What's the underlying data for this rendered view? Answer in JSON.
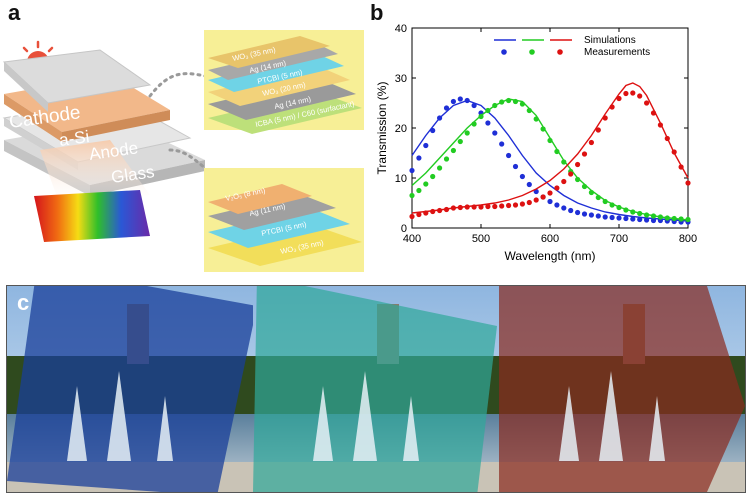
{
  "panels": {
    "a": "a",
    "b": "b",
    "c": "c"
  },
  "panel_a": {
    "main_stack": {
      "cathode": "Cathode",
      "absorber": "a-Si",
      "anode": "Anode",
      "substrate": "Glass"
    },
    "top_layers": [
      "WO₃ (35 nm)",
      "Ag (14 nm)",
      "PTCBI (5 nm)",
      "WO₃ (20 nm)",
      "Ag (14 nm)",
      "ICBA (5 nm) / C60 (surfactant)"
    ],
    "bottom_layers": [
      "V₂O₅ (8 nm)",
      "Ag (11 nm)",
      "PTCBI (5 nm)",
      "WO₃ (35 nm)"
    ]
  },
  "panel_c": {
    "filters": [
      "blue",
      "cyan",
      "red"
    ]
  },
  "chart_data": {
    "type": "line",
    "xlabel": "Wavelength (nm)",
    "ylabel": "Transmission (%)",
    "xlim": [
      400,
      800
    ],
    "ylim": [
      0,
      40
    ],
    "xticks": [
      400,
      500,
      600,
      700,
      800
    ],
    "yticks": [
      0,
      10,
      20,
      30,
      40
    ],
    "legend": {
      "position": "top-right",
      "entries": [
        "Simulations",
        "Measurements"
      ]
    },
    "series": [
      {
        "name": "Blue simulation",
        "kind": "line",
        "color": "#1f2fd6",
        "x": [
          400,
          420,
          440,
          460,
          480,
          500,
          520,
          540,
          560,
          580,
          600,
          620,
          640,
          660,
          680,
          700,
          720,
          740,
          760,
          780,
          800
        ],
        "y": [
          14.5,
          18.5,
          22,
          24.5,
          25.5,
          24.5,
          22,
          18.5,
          14.5,
          11,
          8.5,
          6.5,
          5,
          4,
          3.2,
          2.7,
          2.3,
          2,
          1.8,
          1.6,
          1.4
        ]
      },
      {
        "name": "Blue measurement",
        "kind": "dots",
        "color": "#1f2fd6",
        "x": [
          400,
          410,
          420,
          430,
          440,
          450,
          460,
          470,
          480,
          490,
          500,
          510,
          520,
          530,
          540,
          550,
          560,
          570,
          580,
          590,
          600,
          610,
          620,
          630,
          640,
          650,
          660,
          670,
          680,
          690,
          700,
          710,
          720,
          730,
          740,
          750,
          760,
          770,
          780,
          790,
          800
        ],
        "y": [
          11.5,
          14,
          16.5,
          19.5,
          22,
          24,
          25.3,
          25.8,
          25.5,
          24.5,
          23,
          21,
          19,
          16.8,
          14.5,
          12.3,
          10.3,
          8.7,
          7.3,
          6.2,
          5.3,
          4.6,
          4,
          3.5,
          3.1,
          2.8,
          2.6,
          2.4,
          2.2,
          2.1,
          2,
          1.9,
          1.8,
          1.7,
          1.6,
          1.5,
          1.5,
          1.4,
          1.3,
          1.2,
          1.2
        ]
      },
      {
        "name": "Green simulation",
        "kind": "line",
        "color": "#22cc22",
        "x": [
          400,
          420,
          440,
          460,
          480,
          500,
          520,
          540,
          560,
          580,
          600,
          620,
          640,
          660,
          680,
          700,
          720,
          740,
          760,
          780,
          800
        ],
        "y": [
          8.5,
          11,
          14,
          17,
          20,
          22.5,
          24.5,
          25.8,
          25.3,
          22.5,
          18,
          13.5,
          10,
          7.5,
          5.5,
          4.2,
          3.3,
          2.7,
          2.2,
          1.9,
          1.6
        ]
      },
      {
        "name": "Green measurement",
        "kind": "dots",
        "color": "#22cc22",
        "x": [
          400,
          410,
          420,
          430,
          440,
          450,
          460,
          470,
          480,
          490,
          500,
          510,
          520,
          530,
          540,
          550,
          560,
          570,
          580,
          590,
          600,
          610,
          620,
          630,
          640,
          650,
          660,
          670,
          680,
          690,
          700,
          710,
          720,
          730,
          740,
          750,
          760,
          770,
          780,
          790,
          800
        ],
        "y": [
          6.5,
          7.5,
          8.8,
          10.3,
          12,
          13.8,
          15.5,
          17.3,
          19,
          20.8,
          22.3,
          23.5,
          24.5,
          25.2,
          25.5,
          25.3,
          24.8,
          23.5,
          21.8,
          19.8,
          17.5,
          15.3,
          13.2,
          11.3,
          9.7,
          8.3,
          7.1,
          6.1,
          5.3,
          4.6,
          4.1,
          3.6,
          3.2,
          2.9,
          2.6,
          2.4,
          2.2,
          2,
          1.9,
          1.8,
          1.7
        ]
      },
      {
        "name": "Red simulation",
        "kind": "line",
        "color": "#dd1111",
        "x": [
          400,
          420,
          440,
          460,
          480,
          500,
          520,
          540,
          560,
          580,
          600,
          620,
          640,
          660,
          680,
          700,
          710,
          720,
          730,
          740,
          760,
          780,
          800
        ],
        "y": [
          3,
          3.3,
          3.6,
          4,
          4.3,
          4.6,
          5,
          5.6,
          6.5,
          7.8,
          9.5,
          11.8,
          14.8,
          18.5,
          22.8,
          26.8,
          28.5,
          29,
          28.3,
          26.5,
          21,
          15,
          10
        ]
      },
      {
        "name": "Red measurement",
        "kind": "dots",
        "color": "#dd1111",
        "x": [
          400,
          410,
          420,
          430,
          440,
          450,
          460,
          470,
          480,
          490,
          500,
          510,
          520,
          530,
          540,
          550,
          560,
          570,
          580,
          590,
          600,
          610,
          620,
          630,
          640,
          650,
          660,
          670,
          680,
          690,
          700,
          710,
          720,
          730,
          740,
          750,
          760,
          770,
          780,
          790,
          800
        ],
        "y": [
          2.3,
          2.7,
          3,
          3.3,
          3.5,
          3.7,
          4,
          4.1,
          4.2,
          4.2,
          4.2,
          4.3,
          4.3,
          4.4,
          4.5,
          4.6,
          4.8,
          5.1,
          5.6,
          6.2,
          7,
          8,
          9.3,
          10.8,
          12.7,
          14.8,
          17.1,
          19.6,
          22,
          24.2,
          25.9,
          26.9,
          27,
          26.4,
          25,
          23,
          20.6,
          17.9,
          15.2,
          12.2,
          9
        ]
      }
    ]
  }
}
